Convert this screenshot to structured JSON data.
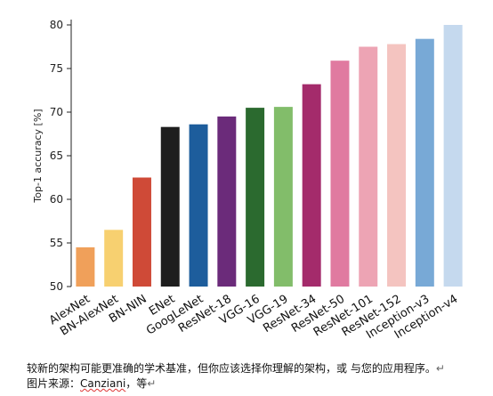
{
  "chart_data": {
    "type": "bar",
    "title": "",
    "xlabel": "",
    "ylabel": "Top-1 accuracy [%]",
    "ylim": [
      50,
      80
    ],
    "yticks": [
      50,
      55,
      60,
      65,
      70,
      75,
      80
    ],
    "grid": false,
    "legend": "none",
    "categories": [
      "AlexNet",
      "BN-AlexNet",
      "BN-NIN",
      "ENet",
      "GoogLeNet",
      "ResNet-18",
      "VGG-16",
      "VGG-19",
      "ResNet-34",
      "ResNet-50",
      "ResNet-101",
      "ResNet-152",
      "Inception-v3",
      "Inception-v4"
    ],
    "values": [
      54.5,
      56.5,
      62.5,
      68.3,
      68.6,
      69.5,
      70.5,
      70.6,
      73.2,
      75.9,
      77.5,
      77.8,
      78.4,
      80.0
    ],
    "colors": [
      "#f0a05a",
      "#f7d070",
      "#cf4a37",
      "#1e1e1e",
      "#1d5d9c",
      "#6b2b7a",
      "#2b6a2f",
      "#82bd6a",
      "#a42b6b",
      "#e07aa0",
      "#eda4b4",
      "#f4c4c0",
      "#78a9d6",
      "#c5d9ee"
    ]
  },
  "caption": {
    "line1": "较新的架构可能更准确的学术基准，但你应该选择你理解的架构，或 与您的应用程序。",
    "line2_prefix": "图片来源：",
    "line2_name": "Canziani",
    "line2_suffix": "，等",
    "pilcrow": "↵"
  }
}
